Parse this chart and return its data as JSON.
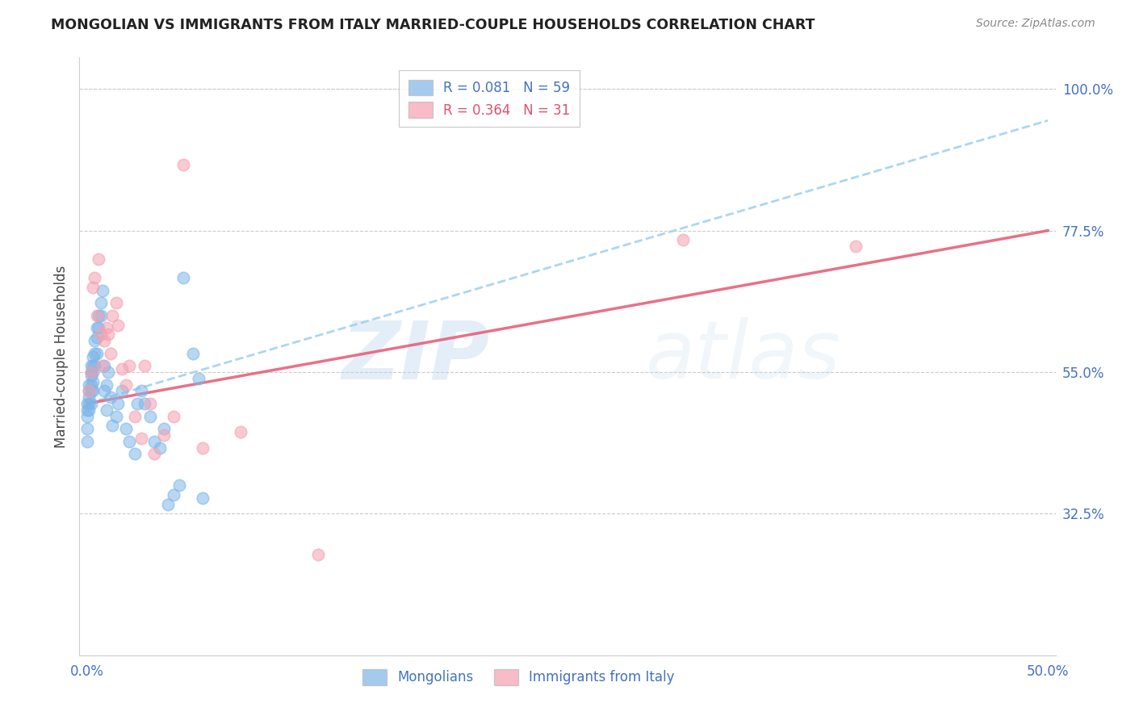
{
  "title": "MONGOLIAN VS IMMIGRANTS FROM ITALY MARRIED-COUPLE HOUSEHOLDS CORRELATION CHART",
  "source": "Source: ZipAtlas.com",
  "xlabel_mongolians": "Mongolians",
  "xlabel_italy": "Immigrants from Italy",
  "ylabel": "Married-couple Households",
  "R_mongolian": 0.081,
  "N_mongolian": 59,
  "R_italy": 0.364,
  "N_italy": 31,
  "color_mongolian": "#7EB6E8",
  "color_italy": "#F4A0B0",
  "color_trend_mongolian": "#9ECFEE",
  "color_trend_italy": "#E8607A",
  "color_axis_labels": "#4472C4",
  "background_color": "#FFFFFF",
  "watermark_zip": "ZIP",
  "watermark_atlas": "atlas",
  "xlim": [
    0.0,
    0.5
  ],
  "ylim": [
    0.1,
    1.05
  ],
  "yticks_right": [
    0.325,
    0.55,
    0.775,
    1.0
  ],
  "ytick_labels_right": [
    "32.5%",
    "55.0%",
    "77.5%",
    "100.0%"
  ],
  "trend_mongolian_x0": 0.0,
  "trend_mongolian_y0": 0.5,
  "trend_mongolian_x1": 0.5,
  "trend_mongolian_y1": 0.95,
  "trend_italy_x0": 0.0,
  "trend_italy_y0": 0.5,
  "trend_italy_x1": 0.5,
  "trend_italy_y1": 0.775,
  "mongolian_x": [
    0.0,
    0.0,
    0.0,
    0.0,
    0.0,
    0.001,
    0.001,
    0.001,
    0.001,
    0.001,
    0.002,
    0.002,
    0.002,
    0.002,
    0.002,
    0.002,
    0.003,
    0.003,
    0.003,
    0.003,
    0.003,
    0.004,
    0.004,
    0.004,
    0.005,
    0.005,
    0.005,
    0.006,
    0.006,
    0.007,
    0.007,
    0.008,
    0.009,
    0.009,
    0.01,
    0.01,
    0.011,
    0.012,
    0.013,
    0.015,
    0.016,
    0.018,
    0.02,
    0.022,
    0.025,
    0.026,
    0.028,
    0.03,
    0.033,
    0.035,
    0.038,
    0.04,
    0.042,
    0.045,
    0.048,
    0.05,
    0.055,
    0.058,
    0.06
  ],
  "mongolian_y": [
    0.5,
    0.49,
    0.48,
    0.46,
    0.44,
    0.53,
    0.52,
    0.51,
    0.5,
    0.49,
    0.56,
    0.55,
    0.545,
    0.53,
    0.52,
    0.5,
    0.575,
    0.56,
    0.55,
    0.535,
    0.52,
    0.6,
    0.58,
    0.56,
    0.62,
    0.605,
    0.58,
    0.64,
    0.62,
    0.66,
    0.64,
    0.68,
    0.56,
    0.52,
    0.53,
    0.49,
    0.55,
    0.51,
    0.465,
    0.48,
    0.5,
    0.52,
    0.46,
    0.44,
    0.42,
    0.5,
    0.52,
    0.5,
    0.48,
    0.44,
    0.43,
    0.46,
    0.34,
    0.355,
    0.37,
    0.7,
    0.58,
    0.54,
    0.35
  ],
  "italy_x": [
    0.001,
    0.002,
    0.003,
    0.004,
    0.005,
    0.006,
    0.007,
    0.008,
    0.009,
    0.01,
    0.011,
    0.012,
    0.013,
    0.015,
    0.016,
    0.018,
    0.02,
    0.022,
    0.025,
    0.028,
    0.03,
    0.033,
    0.035,
    0.04,
    0.045,
    0.05,
    0.06,
    0.08,
    0.12,
    0.31,
    0.4
  ],
  "italy_y": [
    0.52,
    0.55,
    0.685,
    0.7,
    0.64,
    0.73,
    0.61,
    0.56,
    0.6,
    0.62,
    0.61,
    0.58,
    0.64,
    0.66,
    0.625,
    0.555,
    0.53,
    0.56,
    0.48,
    0.445,
    0.56,
    0.5,
    0.42,
    0.45,
    0.48,
    0.88,
    0.43,
    0.455,
    0.26,
    0.76,
    0.75
  ]
}
